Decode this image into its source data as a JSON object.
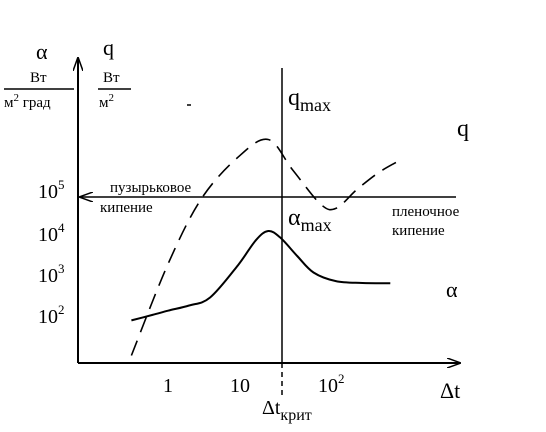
{
  "chart_data": {
    "type": "line",
    "y_axis_left": {
      "symbol": "α",
      "unit_num": "Вт",
      "unit_den_base": "м",
      "unit_den_sup": "2",
      "unit_den_rest": " град"
    },
    "y_axis_right": {
      "symbol": "q",
      "unit_num": "Вт",
      "unit_den_base": "м",
      "unit_den_sup": "2"
    },
    "x_axis": {
      "symbol": "Δt",
      "scale": "log",
      "ticks": [
        {
          "label_base": "1",
          "label_sup": "",
          "value": 1
        },
        {
          "label_base": "10",
          "label_sup": "",
          "value": 10
        },
        {
          "label_base": "10",
          "label_sup": "2",
          "value": 100
        }
      ]
    },
    "y_ticks": [
      {
        "base": "10",
        "sup": "2",
        "value": 100
      },
      {
        "base": "10",
        "sup": "3",
        "value": 1000
      },
      {
        "base": "10",
        "sup": "4",
        "value": 10000
      },
      {
        "base": "10",
        "sup": "5",
        "value": 100000
      }
    ],
    "critical": {
      "x": 27,
      "label_base": "Δt",
      "label_sub": "крит"
    },
    "series": [
      {
        "name": "q",
        "style": "dashed",
        "peak_label_base": "q",
        "peak_label_sub": "max",
        "points": [
          [
            0.3,
            10
          ],
          [
            1,
            1600
          ],
          [
            3,
            60000
          ],
          [
            10,
            600000
          ],
          [
            27,
            1600000
          ],
          [
            60,
            300000
          ],
          [
            150,
            45000
          ],
          [
            250,
            35000
          ],
          [
            500,
            100000
          ],
          [
            1000,
            250000
          ],
          [
            1800,
            450000
          ]
        ]
      },
      {
        "name": "α",
        "style": "solid",
        "peak_label_base": "α",
        "peak_label_sub": "max",
        "points": [
          [
            0.3,
            70
          ],
          [
            0.6,
            95
          ],
          [
            1,
            120
          ],
          [
            2,
            160
          ],
          [
            4,
            250
          ],
          [
            10,
            1500
          ],
          [
            18,
            6000
          ],
          [
            27,
            10000
          ],
          [
            40,
            7000
          ],
          [
            70,
            2500
          ],
          [
            120,
            1000
          ],
          [
            250,
            620
          ],
          [
            600,
            560
          ],
          [
            1500,
            550
          ]
        ]
      }
    ],
    "annotations": {
      "bubble_boiling_1": "пузырьковое",
      "bubble_boiling_2": "кипение",
      "film_boiling_1": "пленочное",
      "film_boiling_2": "кипение"
    }
  }
}
